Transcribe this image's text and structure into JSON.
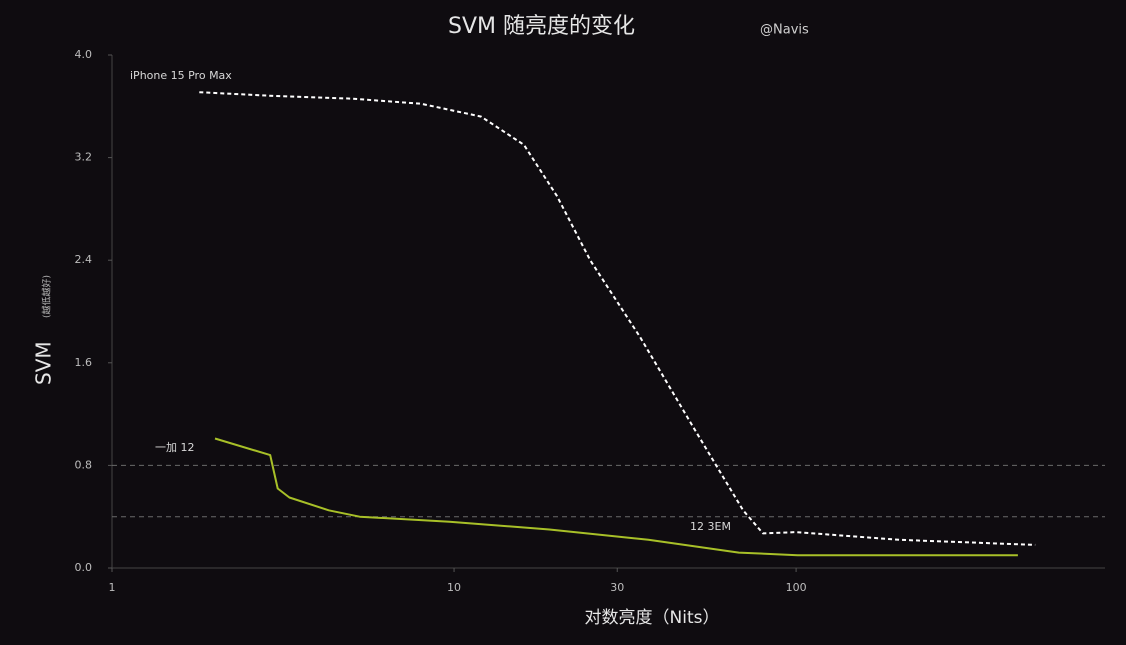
{
  "chart_data": {
    "type": "line",
    "title": "SVM 随亮度的变化",
    "subtitle": "@Navis",
    "y_label": "SVM",
    "y_label_note": "(越低越好)",
    "x_label": "对数亮度（Nits）",
    "annotations": [
      "12 3EM"
    ],
    "x_scale": "log",
    "xlim": [
      1,
      800
    ],
    "xticks": [
      1,
      10,
      30,
      100
    ],
    "ylim": [
      0,
      4
    ],
    "yticks": [
      {
        "value": 0,
        "label": "0.0"
      },
      0.8,
      1.6,
      2.4,
      3.2,
      {
        "value": 4,
        "label": "4.0"
      }
    ],
    "reference_lines": [
      0.8,
      0.4
    ],
    "series": [
      {
        "name": "iPhone 15 Pro Max",
        "color": "#ffffff",
        "dashed": true,
        "x": [
          1.8,
          3,
          5,
          8,
          12,
          16,
          20,
          25,
          35,
          50,
          70,
          80,
          100,
          200,
          500
        ],
        "values": [
          3.71,
          3.68,
          3.66,
          3.62,
          3.52,
          3.3,
          2.9,
          2.4,
          1.8,
          1.1,
          0.45,
          0.27,
          0.28,
          0.22,
          0.18
        ]
      },
      {
        "name": "一加 12",
        "color": "#a8c028",
        "dashed": false,
        "x": [
          2,
          2.9,
          3.05,
          3.3,
          4.3,
          5.3,
          9.7,
          19,
          37,
          68,
          101,
          445
        ],
        "values": [
          1.01,
          0.88,
          0.62,
          0.55,
          0.45,
          0.4,
          0.36,
          0.3,
          0.22,
          0.12,
          0.1,
          0.1
        ]
      }
    ]
  }
}
